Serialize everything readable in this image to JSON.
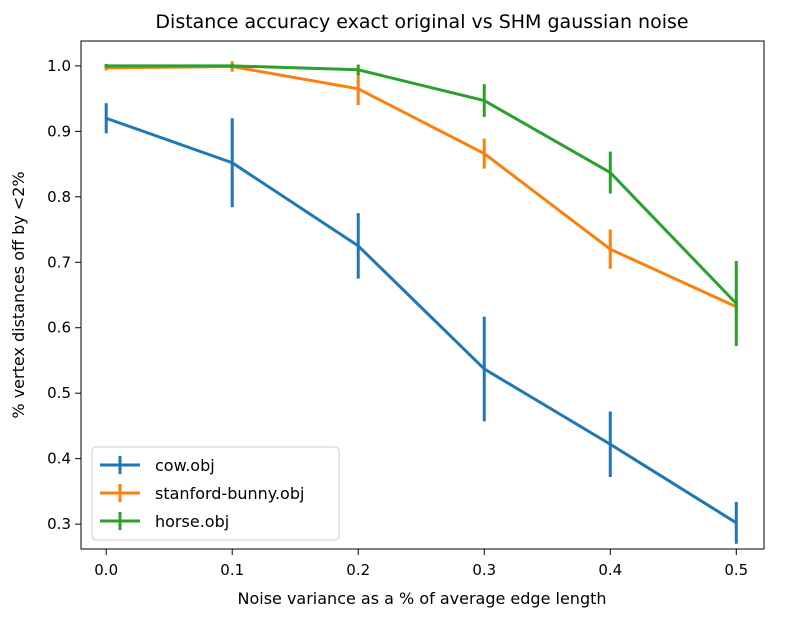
{
  "chart_data": {
    "type": "line",
    "title": "Distance accuracy exact original vs SHM gaussian noise",
    "xlabel": "Noise variance as a % of average edge length",
    "ylabel": "% vertex distances off by <2%",
    "x": [
      0.0,
      0.1,
      0.2,
      0.3,
      0.4,
      0.5
    ],
    "x_ticks": [
      "0.0",
      "0.1",
      "0.2",
      "0.3",
      "0.4",
      "0.5"
    ],
    "y_ticks": [
      "0.3",
      "0.4",
      "0.5",
      "0.6",
      "0.7",
      "0.8",
      "0.9",
      "1.0"
    ],
    "xlim": [
      -0.02,
      0.522
    ],
    "ylim": [
      0.262,
      1.038
    ],
    "grid": false,
    "legend_position": "lower-left",
    "series": [
      {
        "name": "cow.obj",
        "color": "#1f77b4",
        "values": [
          0.92,
          0.852,
          0.725,
          0.537,
          0.422,
          0.302
        ],
        "error": [
          0.023,
          0.068,
          0.05,
          0.08,
          0.05,
          0.032
        ]
      },
      {
        "name": "stanford-bunny.obj",
        "color": "#ff7f0e",
        "values": [
          0.997,
          0.999,
          0.965,
          0.866,
          0.72,
          0.632
        ],
        "error": [
          0.004,
          0.008,
          0.025,
          0.023,
          0.03,
          0.01
        ]
      },
      {
        "name": "horse.obj",
        "color": "#2ca02c",
        "values": [
          1.0,
          1.0,
          0.994,
          0.947,
          0.837,
          0.637
        ],
        "error": [
          0.003,
          0.003,
          0.008,
          0.025,
          0.032,
          0.065
        ]
      }
    ]
  }
}
